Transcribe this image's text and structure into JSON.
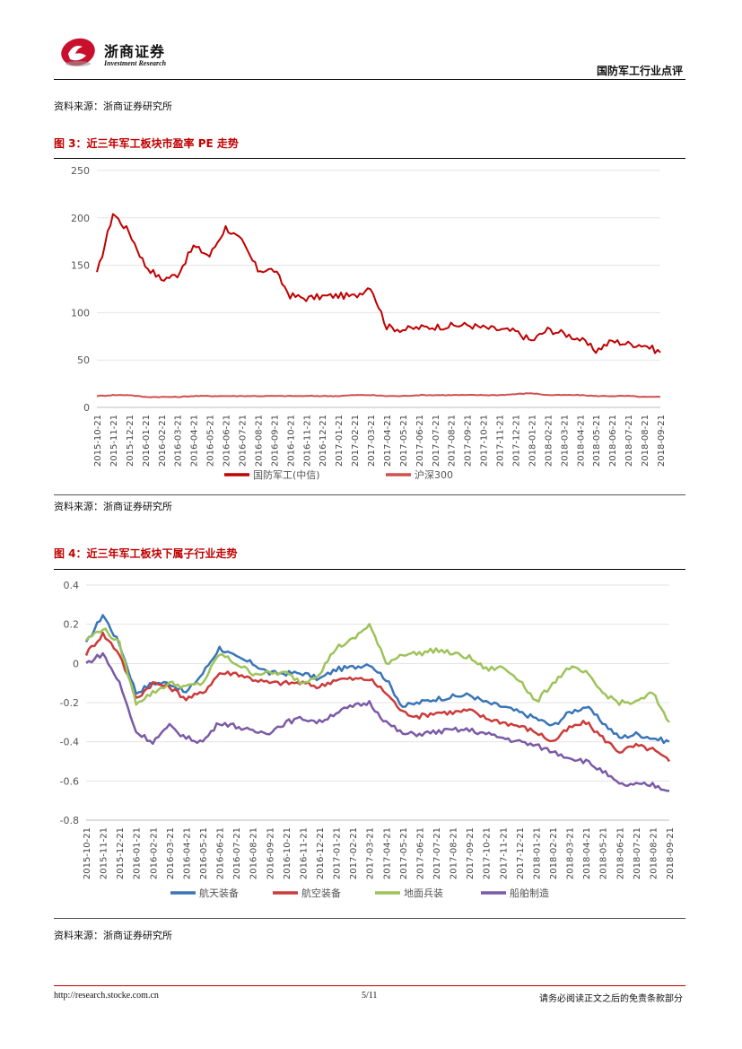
{
  "header": {
    "brand_cn": "浙商证券",
    "brand_en": "Investment Research",
    "doc_title": "国防军工行业点评",
    "logo_icon": "zheshang-logo-icon",
    "logo_color": "#c8102e"
  },
  "top_source": "资料来源：浙商证券研究所",
  "figure3": {
    "title": "图 3：近三年军工板块市盈率 PE 走势",
    "source": "资料来源：浙商证券研究所"
  },
  "figure4": {
    "title": "图 4：近三年军工板块下属子行业走势",
    "source": "资料来源：浙商证券研究所"
  },
  "footer": {
    "url": "http://research.stocke.com.cn",
    "page": "5/11",
    "disclaimer": "请务必阅读正文之后的免责条款部分"
  },
  "chart_data": [
    {
      "type": "line",
      "title": "图 3：近三年军工板块市盈率 PE 走势",
      "ylim": [
        0,
        250
      ],
      "yticks": [
        "0",
        "50",
        "100",
        "150",
        "200",
        "250"
      ],
      "categories": [
        "2015-10-21",
        "2015-11-21",
        "2015-12-21",
        "2016-01-21",
        "2016-02-21",
        "2016-03-21",
        "2016-04-21",
        "2016-05-21",
        "2016-06-21",
        "2016-07-21",
        "2016-08-21",
        "2016-09-21",
        "2016-10-21",
        "2016-11-21",
        "2016-12-21",
        "2017-01-21",
        "2017-02-21",
        "2017-03-21",
        "2017-04-21",
        "2017-05-21",
        "2017-06-21",
        "2017-07-21",
        "2017-08-21",
        "2017-09-21",
        "2017-10-21",
        "2017-11-21",
        "2017-12-21",
        "2018-01-21",
        "2018-02-21",
        "2018-03-21",
        "2018-04-21",
        "2018-05-21",
        "2018-06-21",
        "2018-07-21",
        "2018-08-21",
        "2018-09-21"
      ],
      "series": [
        {
          "name": "国防军工(中信)",
          "color": "#c00000",
          "values": [
            140,
            205,
            185,
            150,
            135,
            140,
            170,
            160,
            190,
            175,
            145,
            145,
            118,
            115,
            117,
            118,
            117,
            128,
            85,
            82,
            84,
            85,
            86,
            87,
            84,
            82,
            80,
            70,
            82,
            78,
            72,
            60,
            70,
            67,
            66,
            58
          ]
        },
        {
          "name": "沪深300",
          "color": "#d05050",
          "values": [
            12,
            13,
            13,
            11,
            11,
            11,
            12,
            12,
            12,
            12,
            12,
            12,
            12,
            12,
            12,
            12,
            13,
            13,
            12,
            12,
            13,
            13,
            13,
            13,
            13,
            13,
            14,
            15,
            13,
            13,
            13,
            12,
            12,
            12,
            11,
            11
          ]
        }
      ]
    },
    {
      "type": "line",
      "title": "图 4：近三年军工板块下属子行业走势",
      "ylim": [
        -0.8,
        0.4
      ],
      "yticks": [
        "-0.8",
        "-0.6",
        "-0.4",
        "-0.2",
        "0",
        "0.2",
        "0.4"
      ],
      "categories": [
        "2015-10-21",
        "2015-11-21",
        "2015-12-21",
        "2016-01-21",
        "2016-02-21",
        "2016-03-21",
        "2016-04-21",
        "2016-05-21",
        "2016-06-21",
        "2016-07-21",
        "2016-08-21",
        "2016-09-21",
        "2016-10-21",
        "2016-11-21",
        "2016-12-21",
        "2017-01-21",
        "2017-02-21",
        "2017-03-21",
        "2017-04-21",
        "2017-05-21",
        "2017-06-21",
        "2017-07-21",
        "2017-08-21",
        "2017-09-21",
        "2017-10-21",
        "2017-11-21",
        "2017-12-21",
        "2018-01-21",
        "2018-02-21",
        "2018-03-21",
        "2018-04-21",
        "2018-05-21",
        "2018-06-21",
        "2018-07-21",
        "2018-08-21",
        "2018-09-21"
      ],
      "series": [
        {
          "name": "航天装备",
          "color": "#3a75b8",
          "values": [
            0.1,
            0.25,
            0.1,
            -0.15,
            -0.1,
            -0.1,
            -0.15,
            -0.05,
            0.08,
            0.03,
            0.0,
            -0.05,
            -0.05,
            -0.05,
            -0.08,
            -0.03,
            -0.02,
            0.0,
            -0.08,
            -0.22,
            -0.2,
            -0.18,
            -0.17,
            -0.16,
            -0.2,
            -0.22,
            -0.25,
            -0.28,
            -0.32,
            -0.25,
            -0.22,
            -0.3,
            -0.38,
            -0.36,
            -0.38,
            -0.4
          ]
        },
        {
          "name": "航空装备",
          "color": "#cc3b3b",
          "values": [
            0.05,
            0.15,
            0.05,
            -0.18,
            -0.1,
            -0.12,
            -0.18,
            -0.15,
            -0.05,
            -0.05,
            -0.08,
            -0.1,
            -0.1,
            -0.1,
            -0.12,
            -0.08,
            -0.08,
            -0.08,
            -0.15,
            -0.25,
            -0.27,
            -0.25,
            -0.25,
            -0.24,
            -0.28,
            -0.3,
            -0.32,
            -0.35,
            -0.4,
            -0.33,
            -0.3,
            -0.38,
            -0.45,
            -0.42,
            -0.44,
            -0.5
          ]
        },
        {
          "name": "地面兵装",
          "color": "#9dc35a",
          "values": [
            0.12,
            0.18,
            0.1,
            -0.2,
            -0.15,
            -0.1,
            -0.12,
            -0.1,
            0.05,
            0.0,
            -0.05,
            -0.05,
            -0.05,
            -0.1,
            -0.05,
            0.08,
            0.12,
            0.2,
            0.0,
            0.05,
            0.05,
            0.07,
            0.05,
            0.03,
            -0.03,
            -0.02,
            -0.08,
            -0.2,
            -0.1,
            -0.02,
            -0.05,
            -0.15,
            -0.2,
            -0.2,
            -0.15,
            -0.3
          ]
        },
        {
          "name": "船舶制造",
          "color": "#7b5aa6",
          "values": [
            0.0,
            0.05,
            -0.1,
            -0.35,
            -0.4,
            -0.32,
            -0.38,
            -0.4,
            -0.3,
            -0.32,
            -0.35,
            -0.35,
            -0.3,
            -0.28,
            -0.3,
            -0.25,
            -0.22,
            -0.2,
            -0.3,
            -0.36,
            -0.36,
            -0.35,
            -0.34,
            -0.34,
            -0.36,
            -0.38,
            -0.4,
            -0.42,
            -0.45,
            -0.48,
            -0.5,
            -0.55,
            -0.62,
            -0.62,
            -0.62,
            -0.65
          ]
        }
      ]
    }
  ]
}
